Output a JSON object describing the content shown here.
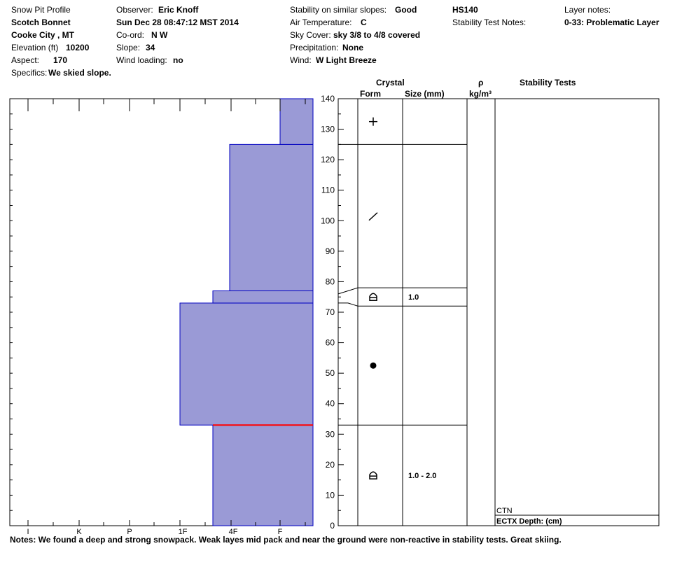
{
  "header": {
    "profile_label": "Snow Pit Profile",
    "site_name": "Scotch Bonnet",
    "location": "Cooke City , MT",
    "elevation_label": "Elevation (ft)",
    "elevation_value": "10200",
    "aspect_label": "Aspect:",
    "aspect_value": "170",
    "specifics_label": "Specifics:",
    "specifics_value": "We skied slope.",
    "observer_label": "Observer:",
    "observer_value": "Eric Knoff",
    "datetime": "Sun Dec 28 08:47:12 MST 2014",
    "coord_label": "Co-ord:",
    "coord_value": "N  W",
    "slope_label": "Slope:",
    "slope_value": "34",
    "wind_loading_label": "Wind loading:",
    "wind_loading_value": "no",
    "stability_label": "Stability on similar slopes:",
    "stability_value": "Good",
    "air_temp_label": "Air Temperature:",
    "air_temp_value": "C",
    "sky_label": "Sky Cover:",
    "sky_value": "sky 3/8 to 4/8 covered",
    "precip_label": "Precipitation:",
    "precip_value": "None",
    "wind_label": "Wind:",
    "wind_value": "W Light Breeze",
    "hs": "HS140",
    "stability_notes_label": "Stability Test Notes:",
    "layer_notes_label": "Layer notes:",
    "layer_notes_value": "0-33: Problematic Layer"
  },
  "columns": {
    "crystal": "Crystal",
    "form": "Form",
    "size": "Size (mm)",
    "rho": "ρ",
    "density_unit": "kg/m³",
    "stability_tests": "Stability Tests"
  },
  "stability_tests": {
    "ctn": "CTN",
    "ectx": "ECTX  Depth: (cm)"
  },
  "notes": "Notes:  We found a deep and strong snowpack. Weak layes mid pack and near the ground were non-reactive in stability tests. Great skiing.",
  "colors": {
    "layer_fill": "#9a9ad6",
    "layer_stroke": "#0000c0",
    "weak_layer": "#ff0000"
  },
  "chart_data": {
    "type": "bar",
    "title": "",
    "xlabel": "",
    "ylabel": "",
    "hardness_scale": [
      "I",
      "K",
      "P",
      "1F",
      "4F",
      "F"
    ],
    "ylim": [
      0,
      140
    ],
    "y_ticks": [
      0,
      10,
      20,
      30,
      40,
      50,
      60,
      70,
      80,
      90,
      100,
      110,
      120,
      130,
      140
    ],
    "layers": [
      {
        "bottom": 0,
        "top": 33,
        "hardness": "4F"
      },
      {
        "bottom": 33,
        "top": 73,
        "hardness": "1F"
      },
      {
        "bottom": 73,
        "top": 77,
        "hardness": "4F"
      },
      {
        "bottom": 77,
        "top": 125,
        "hardness": "4F-"
      },
      {
        "bottom": 125,
        "top": 140,
        "hardness": "F"
      }
    ],
    "hardness_index": [
      4,
      3,
      4,
      4.4,
      5
    ],
    "weak_layer_height": 33,
    "crystal_layers": [
      {
        "bottom": 0,
        "top": 33,
        "form": "depth-hoar",
        "size": "1.0 - 2.0"
      },
      {
        "bottom": 33,
        "top": 72,
        "form": "rounded",
        "size": ""
      },
      {
        "bottom": 72,
        "top": 78,
        "form": "depth-hoar",
        "size": "1.0"
      },
      {
        "bottom": 78,
        "top": 125,
        "form": "decomposing",
        "size": ""
      },
      {
        "bottom": 125,
        "top": 140,
        "form": "new-snow",
        "size": ""
      }
    ]
  }
}
